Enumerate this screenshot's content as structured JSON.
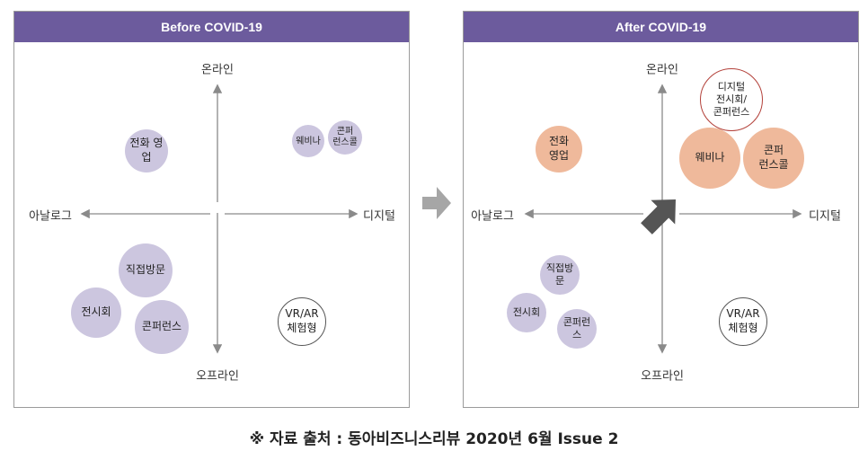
{
  "before_panel": {
    "title": "Before COVID-19",
    "axes": {
      "top": "온라인",
      "bottom": "오프라인",
      "left": "아날로그",
      "right": "디지털"
    },
    "bubbles": {
      "phone_sales": "전화 영업",
      "webinar": "웨비나",
      "conference_call_l1": "콘퍼",
      "conference_call_l2": "런스콜",
      "direct_visit": "직접방문",
      "exhibition": "전시회",
      "conference": "콘퍼런스",
      "vr_ar_l1": "VR/AR",
      "vr_ar_l2": "체험형"
    }
  },
  "after_panel": {
    "title": "After COVID-19",
    "axes": {
      "top": "온라인",
      "bottom": "오프라인",
      "left": "아날로그",
      "right": "디지털"
    },
    "bubbles": {
      "phone_sales_l1": "전화",
      "phone_sales_l2": "영업",
      "digital_expo_l1": "디지털",
      "digital_expo_l2": "전시회/",
      "digital_expo_l3": "콘퍼런스",
      "webinar": "웨비나",
      "conference_call_l1": "콘퍼",
      "conference_call_l2": "런스콜",
      "direct_visit": "직접방문",
      "exhibition": "전시회",
      "conference": "콘퍼런스",
      "vr_ar_l1": "VR/AR",
      "vr_ar_l2": "체험형"
    }
  },
  "source_note": "※ 자료 출처 : 동아비즈니스리뷰 2020년 6월 Issue 2",
  "colors": {
    "header": "#6c5b9d",
    "purple_bubble": "#ccc6df",
    "orange_bubble": "#efb99b",
    "red_outline": "#b3413a",
    "axis": "#8a8a8a",
    "trend_arrow": "#555555",
    "transition_arrow": "#a6a6a6"
  }
}
